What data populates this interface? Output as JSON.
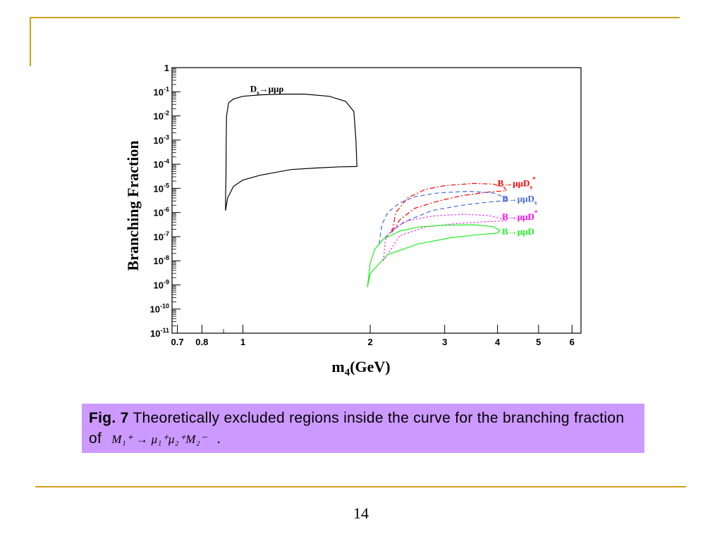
{
  "slide": {
    "page_number": "14",
    "accent_color": "#d4a017",
    "caption_bg": "#cc99ff"
  },
  "caption": {
    "fig_label": "Fig. 7",
    "text_before": " Theoretically excluded regions inside the curve for the branching fraction of ",
    "formula": "M₁⁺ → μ₁⁺μ₂⁺M₂⁻",
    "text_after": " ."
  },
  "chart_data": {
    "type": "line",
    "xscale": "log",
    "yscale": "log",
    "xlim": [
      0.68,
      6.3
    ],
    "ylim": [
      1e-11,
      1
    ],
    "xlabel_main": "m",
    "xlabel_sub": "4",
    "xlabel_rest": "(GeV)",
    "ylabel": "Branching Fraction",
    "x_ticks": [
      {
        "v": 0.7,
        "label": "0.7"
      },
      {
        "v": 0.8,
        "label": "0.8"
      },
      {
        "v": 1,
        "label": "1"
      },
      {
        "v": 2,
        "label": "2"
      },
      {
        "v": 3,
        "label": "3"
      },
      {
        "v": 4,
        "label": "4"
      },
      {
        "v": 5,
        "label": "5"
      },
      {
        "v": 6,
        "label": "6"
      }
    ],
    "y_ticks": [
      {
        "exp": 0,
        "base": "1",
        "sup": ""
      },
      {
        "exp": -1,
        "base": "10",
        "sup": "-1"
      },
      {
        "exp": -2,
        "base": "10",
        "sup": "-2"
      },
      {
        "exp": -3,
        "base": "10",
        "sup": "-3"
      },
      {
        "exp": -4,
        "base": "10",
        "sup": "-4"
      },
      {
        "exp": -5,
        "base": "10",
        "sup": "-5"
      },
      {
        "exp": -6,
        "base": "10",
        "sup": "-6"
      },
      {
        "exp": -7,
        "base": "10",
        "sup": "-7"
      },
      {
        "exp": -8,
        "base": "10",
        "sup": "-8"
      },
      {
        "exp": -9,
        "base": "10",
        "sup": "-9"
      },
      {
        "exp": -10,
        "base": "10",
        "sup": "-10"
      },
      {
        "exp": -11,
        "base": "10",
        "sup": "-11"
      }
    ],
    "series": [
      {
        "id": "ds",
        "color": "#000000",
        "dash": "",
        "label_main": "D",
        "label_sub": "s",
        "label_rest": "→μμρ",
        "label_sup": "",
        "label_at": [
          1.04,
          0.1
        ],
        "points": [
          [
            0.91,
            1.2e-06
          ],
          [
            0.91,
            4e-06
          ],
          [
            0.912,
            3e-05
          ],
          [
            0.913,
            0.001
          ],
          [
            0.915,
            0.01
          ],
          [
            0.925,
            0.035
          ],
          [
            0.95,
            0.05
          ],
          [
            1.0,
            0.065
          ],
          [
            1.1,
            0.075
          ],
          [
            1.25,
            0.08
          ],
          [
            1.4,
            0.08
          ],
          [
            1.6,
            0.065
          ],
          [
            1.75,
            0.04
          ],
          [
            1.83,
            0.015
          ],
          [
            1.85,
            0.001
          ],
          [
            1.86,
            8e-05
          ],
          [
            1.7,
            7.8e-05
          ],
          [
            1.5,
            7e-05
          ],
          [
            1.3,
            6e-05
          ],
          [
            1.1,
            3.5e-05
          ],
          [
            1.0,
            2.2e-05
          ],
          [
            0.95,
            1.2e-05
          ],
          [
            0.92,
            4e-06
          ],
          [
            0.91,
            1.2e-06
          ]
        ]
      },
      {
        "id": "bdss",
        "color": "#ff0000",
        "dash": "7,3,2,3",
        "label_main": "B→μμD",
        "label_sub": "s",
        "label_rest": "",
        "label_sup": "*",
        "label_at": [
          4.0,
          1.2e-05
        ],
        "points": [
          [
            2.25,
            1.5e-07
          ],
          [
            2.3,
            1e-06
          ],
          [
            2.45,
            4e-06
          ],
          [
            2.7,
            9e-06
          ],
          [
            3.0,
            1.3e-05
          ],
          [
            3.5,
            1.6e-05
          ],
          [
            3.9,
            1.5e-05
          ],
          [
            4.15,
            1.1e-05
          ],
          [
            4.2,
            8e-06
          ],
          [
            3.8,
            7e-06
          ],
          [
            3.3,
            5e-06
          ],
          [
            2.9,
            3e-06
          ],
          [
            2.55,
            1.5e-06
          ],
          [
            2.35,
            5e-07
          ],
          [
            2.25,
            1.5e-07
          ]
        ]
      },
      {
        "id": "bds",
        "color": "#4466dd",
        "dash": "6,4",
        "label_main": "B→μμD",
        "label_sub": "s",
        "label_rest": "",
        "label_sup": "",
        "label_at": [
          4.1,
          2.8e-06
        ],
        "points": [
          [
            2.1,
            5e-08
          ],
          [
            2.13,
            3e-07
          ],
          [
            2.2,
            1e-06
          ],
          [
            2.35,
            2.5e-06
          ],
          [
            2.55,
            4.5e-06
          ],
          [
            2.9,
            6.5e-06
          ],
          [
            3.4,
            7.5e-06
          ],
          [
            3.9,
            6.5e-06
          ],
          [
            4.2,
            4e-06
          ],
          [
            4.25,
            3.2e-06
          ],
          [
            3.8,
            2.7e-06
          ],
          [
            3.3,
            2e-06
          ],
          [
            2.8,
            1.2e-06
          ],
          [
            2.4,
            4e-07
          ],
          [
            2.2,
            1.2e-07
          ],
          [
            2.1,
            5e-08
          ]
        ]
      },
      {
        "id": "bdst",
        "color": "#ff00ff",
        "dash": "2,3",
        "label_main": "B→μμD",
        "label_sub": "",
        "label_rest": "",
        "label_sup": "*",
        "label_at": [
          4.1,
          5e-07
        ],
        "points": [
          [
            2.15,
            1e-08
          ],
          [
            2.17,
            7e-08
          ],
          [
            2.25,
            2e-07
          ],
          [
            2.45,
            4.5e-07
          ],
          [
            2.8,
            7e-07
          ],
          [
            3.3,
            8.5e-07
          ],
          [
            3.8,
            7.5e-07
          ],
          [
            4.1,
            5.5e-07
          ],
          [
            4.2,
            4.5e-07
          ],
          [
            3.8,
            4.2e-07
          ],
          [
            3.2,
            3.5e-07
          ],
          [
            2.7,
            2.5e-07
          ],
          [
            2.35,
            1.1e-07
          ],
          [
            2.15,
            1e-08
          ]
        ]
      },
      {
        "id": "bd",
        "color": "#22ee22",
        "dash": "",
        "label_main": "B→μμD",
        "label_sub": "",
        "label_rest": "",
        "label_sup": "",
        "label_at": [
          4.1,
          1.2e-07
        ],
        "points": [
          [
            1.97,
            8e-10
          ],
          [
            2.0,
            8e-09
          ],
          [
            2.05,
            3e-08
          ],
          [
            2.15,
            8e-08
          ],
          [
            2.35,
            1.7e-07
          ],
          [
            2.6,
            2.5e-07
          ],
          [
            3.0,
            3e-07
          ],
          [
            3.5,
            3.1e-07
          ],
          [
            3.9,
            2.6e-07
          ],
          [
            4.05,
            1.8e-07
          ],
          [
            4.0,
            1.4e-07
          ],
          [
            3.6,
            1.2e-07
          ],
          [
            3.1,
            9e-08
          ],
          [
            2.6,
            5e-08
          ],
          [
            2.2,
            1.8e-08
          ],
          [
            2.0,
            3e-09
          ],
          [
            1.97,
            8e-10
          ]
        ]
      }
    ]
  }
}
